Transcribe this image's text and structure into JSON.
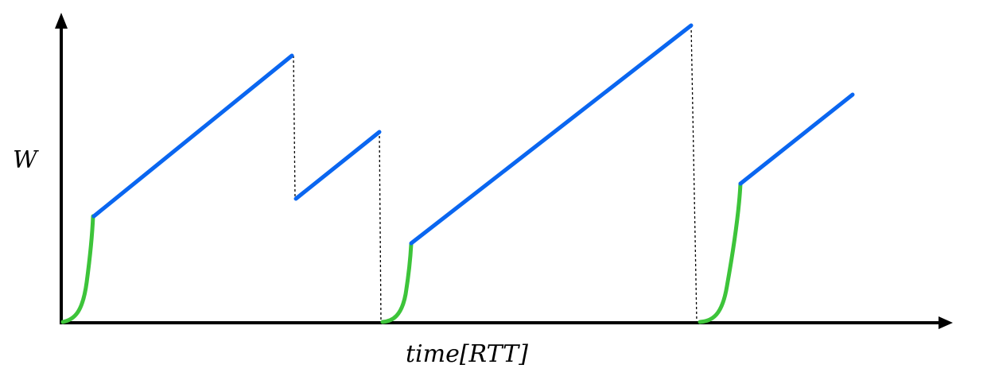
{
  "diagram": {
    "y_axis_label": "W",
    "x_axis_label": "time[RTT]",
    "colors": {
      "axis": "#000000",
      "slow_start": "#3dc43a",
      "congestion_avoidance": "#0a66f0",
      "loss_marker": "#000000"
    },
    "phases": [
      {
        "type": "slow-start",
        "index": 1
      },
      {
        "type": "congestion-avoidance",
        "index": 1
      },
      {
        "type": "loss-drop",
        "index": 1
      },
      {
        "type": "congestion-avoidance",
        "index": 2
      },
      {
        "type": "timeout-drop",
        "index": 1
      },
      {
        "type": "slow-start",
        "index": 2
      },
      {
        "type": "congestion-avoidance",
        "index": 3
      },
      {
        "type": "timeout-drop",
        "index": 2
      },
      {
        "type": "slow-start",
        "index": 3
      },
      {
        "type": "congestion-avoidance",
        "index": 4
      }
    ]
  }
}
